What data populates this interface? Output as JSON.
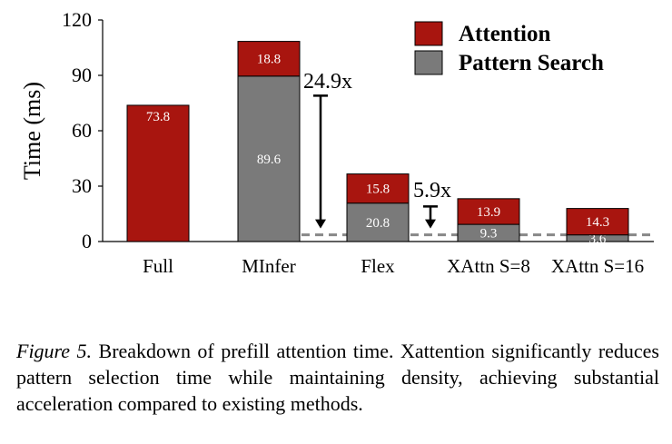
{
  "chart_data": {
    "type": "bar",
    "stacked": true,
    "categories": [
      "Full",
      "MInfer",
      "Flex",
      "XAttn S=8",
      "XAttn S=16"
    ],
    "series": [
      {
        "name": "Pattern Search",
        "color": "#7a7a7a",
        "values": [
          0,
          89.6,
          20.8,
          9.3,
          3.6
        ],
        "labels": [
          "",
          "89.6",
          "20.8",
          "9.3",
          "3.6"
        ]
      },
      {
        "name": "Attention",
        "color": "#a8150f",
        "values": [
          73.8,
          18.8,
          15.8,
          13.9,
          14.3
        ],
        "labels": [
          "73.8",
          "18.8",
          "15.8",
          "13.9",
          "14.3"
        ]
      }
    ],
    "title": "",
    "xlabel": "",
    "ylabel": "Time (ms)",
    "ylim": [
      0,
      120
    ],
    "yticks": [
      0,
      30,
      60,
      90,
      120
    ],
    "grid": false,
    "legend_position": "top-right",
    "reference_line": {
      "value": 3.6,
      "style": "dashed",
      "color": "#888888"
    },
    "annotations": [
      {
        "text": "24.9x",
        "category": "MInfer",
        "from": 79,
        "to": 3.6
      },
      {
        "text": "5.9x",
        "category": "Flex",
        "from": 19,
        "to": 3.6
      }
    ]
  },
  "caption": {
    "figure_label": "Figure 5.",
    "text": " Breakdown of prefill attention time. Xattention significantly reduces pattern selection time while maintaining density, achieving substantial acceleration compared to existing methods."
  }
}
